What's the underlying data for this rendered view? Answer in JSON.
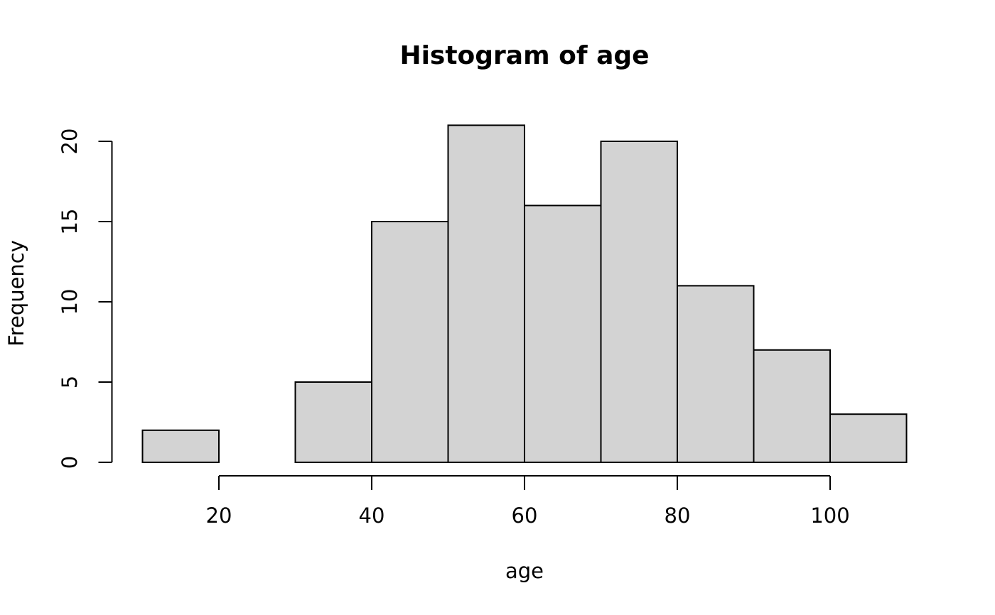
{
  "chart_data": {
    "type": "histogram",
    "title": "Histogram of age",
    "x_label": "age",
    "y_label": "Frequency",
    "bins": [
      10,
      20,
      30,
      40,
      50,
      60,
      70,
      80,
      90,
      100,
      110
    ],
    "counts": [
      2,
      0,
      5,
      15,
      21,
      16,
      20,
      11,
      7,
      3
    ],
    "color": "#d3d3d3",
    "edgecolor": "#000000",
    "xlim": [
      6,
      114
    ],
    "ylim": [
      -0.84,
      21.84
    ],
    "xticks": [
      20,
      40,
      60,
      80,
      100
    ],
    "yticks": [
      0,
      5,
      10,
      15,
      20
    ],
    "grid": false
  }
}
